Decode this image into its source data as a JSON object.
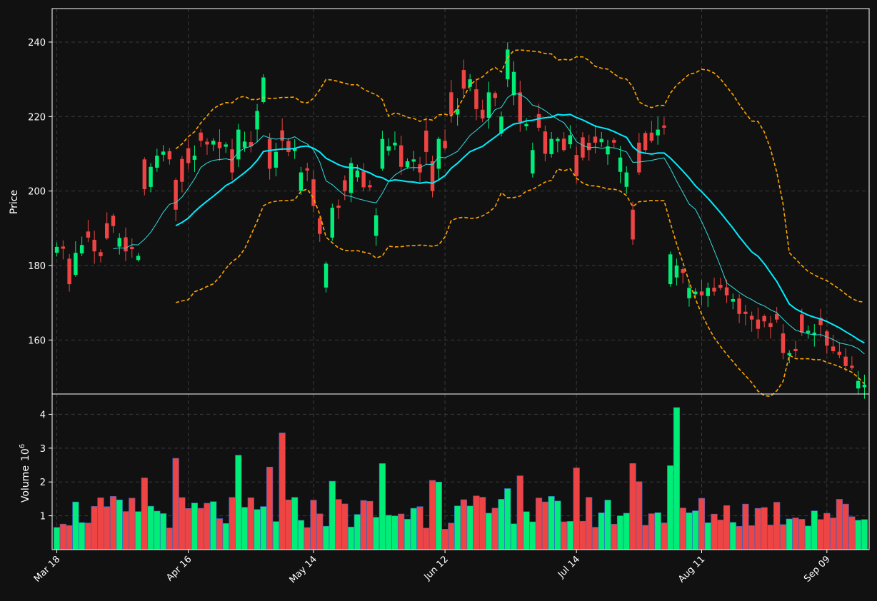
{
  "chart_data": {
    "type": "candlestick",
    "price_panel": {
      "ylabel": "Price",
      "ylim": [
        145.5,
        249
      ],
      "yticks": [
        160,
        180,
        200,
        220,
        240
      ],
      "grid": true
    },
    "volume_panel": {
      "ylabel": "Volume",
      "ylabel_exponent": "10",
      "ylabel_power": "6",
      "ylim": [
        0,
        4.6
      ],
      "yticks": [
        1,
        2,
        3,
        4
      ],
      "grid": true
    },
    "xtick_labels": [
      {
        "index": 0,
        "label": "Mar 18"
      },
      {
        "index": 21,
        "label": "Apr 16"
      },
      {
        "index": 41,
        "label": "May 14"
      },
      {
        "index": 62,
        "label": "Jun 12"
      },
      {
        "index": 83,
        "label": "Jul 14"
      },
      {
        "index": 103,
        "label": "Aug 11"
      },
      {
        "index": 123,
        "label": "Sep 09"
      }
    ],
    "colors": {
      "up": "#00ee77",
      "down": "#ee4444",
      "background": "#111111",
      "ma_fast": "#33dddd",
      "ma_slow": "#00eeff",
      "bands": "#ffa500",
      "volume_edge": "#3366cc"
    },
    "close": [
      185,
      184.5,
      175,
      183.4,
      185.5,
      187.5,
      183.8,
      182.5,
      187.3,
      190.6,
      187.4,
      183.8,
      184.4,
      182.6,
      200.5,
      206.5,
      209.5,
      210.6,
      208.5,
      195,
      202.5,
      207.5,
      209.5,
      213.5,
      212.5,
      213.5,
      211.5,
      212.5,
      205,
      216.5,
      213.3,
      212,
      221.5,
      230.5,
      206,
      210.5,
      213.5,
      210.5,
      211.5,
      205,
      205.5,
      196,
      188.5,
      180.5,
      195.5,
      195.5,
      200,
      207.5,
      205.5,
      201,
      201,
      193.5,
      214,
      212,
      213,
      206.5,
      208,
      208.5,
      205,
      210.5,
      200,
      214,
      211.5,
      220.5,
      222,
      227.5,
      230,
      222,
      219.5,
      226.5,
      225,
      220,
      238,
      232,
      218.5,
      218,
      211,
      217,
      210,
      214,
      214,
      211,
      215,
      204,
      209,
      211,
      213,
      214,
      212,
      213,
      209,
      205,
      187,
      205,
      211,
      213.5,
      216.5,
      217,
      183,
      180,
      178,
      174,
      173,
      172,
      174,
      173,
      174,
      172,
      171,
      167,
      167,
      165.5,
      163,
      165,
      163.5,
      165.5,
      156.5,
      156.5,
      157,
      162,
      162.5,
      162,
      164,
      158.5,
      157,
      156,
      153,
      152.5,
      149,
      148
    ]
  }
}
